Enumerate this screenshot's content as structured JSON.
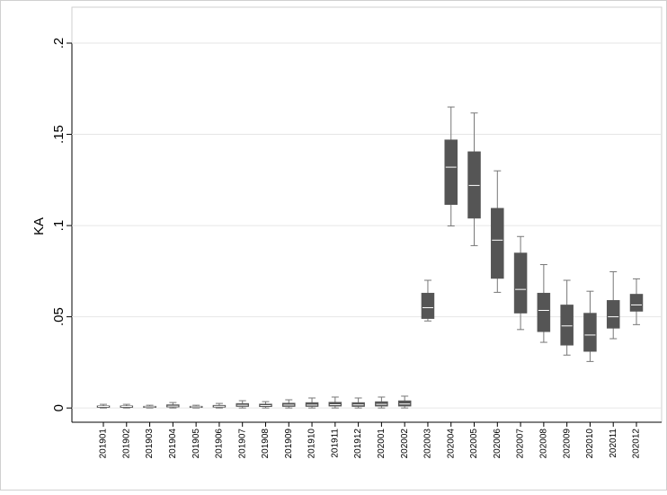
{
  "chart_data": {
    "type": "box",
    "y_label": "KA",
    "categories": [
      "201901",
      "201902",
      "201903",
      "201904",
      "201905",
      "201906",
      "201907",
      "201908",
      "201909",
      "201910",
      "201911",
      "201912",
      "202001",
      "202002",
      "202003",
      "202004",
      "202005",
      "202006",
      "202007",
      "202008",
      "202009",
      "202010",
      "202011",
      "202012"
    ],
    "low": [
      0,
      0,
      0,
      0,
      0,
      0,
      0,
      0,
      0,
      0,
      0,
      0,
      0,
      0,
      0.0477,
      0.0998,
      0.089,
      0.0634,
      0.043,
      0.036,
      0.029,
      0.0255,
      0.038,
      0.0457
    ],
    "q1": [
      0.0003,
      0.0003,
      0.0002,
      0.0005,
      0.0002,
      0.0004,
      0.0008,
      0.0007,
      0.0008,
      0.0008,
      0.001,
      0.0008,
      0.001,
      0.001,
      0.049,
      0.1115,
      0.104,
      0.071,
      0.052,
      0.0418,
      0.0344,
      0.031,
      0.0437,
      0.053
    ],
    "median": [
      0.0008,
      0.0008,
      0.0006,
      0.001,
      0.0006,
      0.0009,
      0.0015,
      0.0013,
      0.0016,
      0.0016,
      0.0018,
      0.0017,
      0.002,
      0.0022,
      0.055,
      0.132,
      0.122,
      0.092,
      0.065,
      0.0535,
      0.045,
      0.04,
      0.05,
      0.0565
    ],
    "q3": [
      0.0012,
      0.0012,
      0.001,
      0.0018,
      0.001,
      0.0015,
      0.0025,
      0.0022,
      0.0027,
      0.003,
      0.0032,
      0.003,
      0.0035,
      0.004,
      0.063,
      0.147,
      0.1405,
      0.1095,
      0.085,
      0.063,
      0.0565,
      0.052,
      0.059,
      0.0624
    ],
    "high": [
      0.002,
      0.002,
      0.0015,
      0.003,
      0.0015,
      0.0025,
      0.004,
      0.0035,
      0.0045,
      0.0055,
      0.006,
      0.0055,
      0.006,
      0.0065,
      0.07,
      0.165,
      0.1617,
      0.13,
      0.094,
      0.0786,
      0.07,
      0.064,
      0.0747,
      0.0708
    ],
    "color": "#555555",
    "ylim": [
      -0.0078,
      0.2
    ],
    "yticks": [
      0,
      {
        "value": 0.05,
        "label": ".05"
      },
      {
        "value": 0.1,
        "label": ".1"
      },
      {
        "value": 0.15,
        "label": ".15"
      },
      {
        "value": 0.2,
        "label": ".2"
      }
    ],
    "grid": true
  }
}
